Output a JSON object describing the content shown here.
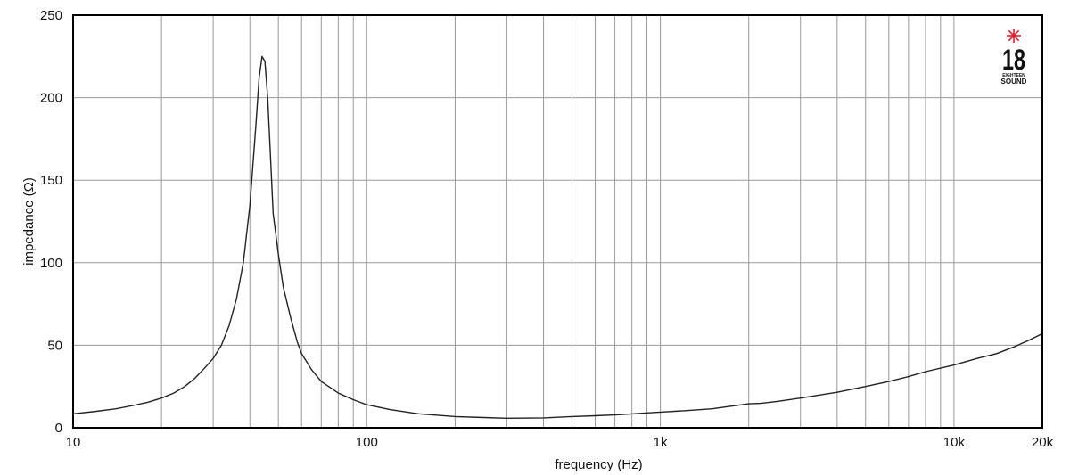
{
  "chart_data": {
    "type": "line",
    "xlabel": "frequency (Hz)",
    "ylabel": "impedance (Ω)",
    "x_scale": "log",
    "xlim": [
      10,
      20000
    ],
    "ylim": [
      0,
      250
    ],
    "grid": true,
    "y_ticks": [
      {
        "value": 0,
        "label": "0"
      },
      {
        "value": 50,
        "label": "50"
      },
      {
        "value": 100,
        "label": "100"
      },
      {
        "value": 150,
        "label": "150"
      },
      {
        "value": 200,
        "label": "200"
      },
      {
        "value": 250,
        "label": "250"
      }
    ],
    "x_ticks": [
      {
        "value": 10,
        "label": "10"
      },
      {
        "value": 100,
        "label": "100"
      },
      {
        "value": 1000,
        "label": "1k"
      },
      {
        "value": 10000,
        "label": "10k"
      },
      {
        "value": 20000,
        "label": "20k"
      }
    ],
    "x_gridlines": [
      20,
      30,
      40,
      50,
      60,
      70,
      80,
      90,
      100,
      200,
      300,
      400,
      500,
      600,
      700,
      800,
      900,
      1000,
      2000,
      3000,
      4000,
      5000,
      6000,
      7000,
      8000,
      9000,
      10000
    ],
    "series": [
      {
        "color": "#222222",
        "x": [
          10,
          12,
          14,
          16,
          18,
          20,
          22,
          24,
          26,
          28,
          30,
          32,
          34,
          36,
          38,
          40,
          42,
          43,
          44,
          45,
          46,
          47,
          48,
          50,
          52,
          55,
          58,
          60,
          65,
          70,
          80,
          90,
          100,
          120,
          150,
          200,
          250,
          300,
          400,
          500,
          600,
          700,
          800,
          900,
          1000,
          1200,
          1500,
          2000,
          2200,
          2500,
          3000,
          4000,
          5000,
          6000,
          7000,
          8000,
          10000,
          12000,
          14000,
          16000,
          18000,
          20000
        ],
        "y": [
          8.5,
          10,
          11.5,
          13.5,
          15.5,
          18,
          21,
          25,
          30,
          36,
          42,
          50,
          62,
          78,
          100,
          135,
          185,
          212,
          225,
          222,
          200,
          165,
          130,
          105,
          85,
          67,
          52,
          45,
          35,
          28,
          21,
          17,
          14,
          11,
          8.5,
          6.8,
          6.2,
          5.8,
          6.0,
          6.8,
          7.3,
          7.8,
          8.4,
          9.0,
          9.5,
          10.3,
          11.5,
          14.5,
          14.8,
          16,
          18,
          21.5,
          25,
          28,
          31,
          34,
          38,
          42,
          45,
          49,
          53,
          57
        ]
      }
    ]
  },
  "logo": {
    "number": "18",
    "line1": "EIGHTEEN",
    "line2": "SOUND",
    "star_color": "#e0202a"
  }
}
